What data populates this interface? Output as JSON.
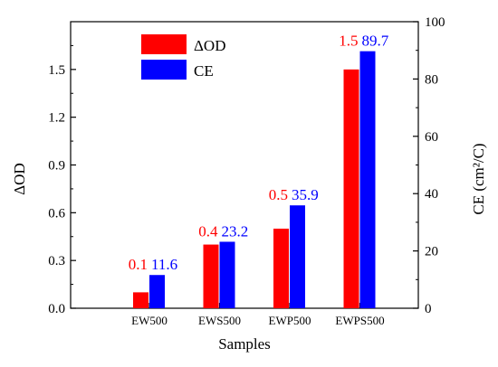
{
  "chart_data": {
    "type": "bar",
    "categories": [
      "EW500",
      "EWS500",
      "EWP500",
      "EWPS500"
    ],
    "series": [
      {
        "name": "ΔOD",
        "axis": "left",
        "color": "#ff0000",
        "values": [
          0.1,
          0.4,
          0.5,
          1.5
        ],
        "labels": [
          "0.1",
          "0.4",
          "0.5",
          "1.5"
        ]
      },
      {
        "name": "CE",
        "axis": "right",
        "color": "#0000ff",
        "values": [
          11.6,
          23.2,
          35.9,
          89.7
        ],
        "labels": [
          "11.6",
          "23.2",
          "35.9",
          "89.7"
        ]
      }
    ],
    "xlabel": "Samples",
    "ylabel_left": "ΔOD",
    "ylabel_right": "CE (cm²/C)",
    "ylim_left": [
      0,
      1.8
    ],
    "yticks_left": [
      "0.0",
      "0.3",
      "0.6",
      "0.9",
      "1.2",
      "1.5"
    ],
    "ylim_right": [
      0,
      100
    ],
    "yticks_right": [
      "0",
      "20",
      "40",
      "60",
      "80",
      "100"
    ],
    "grid": false,
    "legend": "top-center"
  }
}
